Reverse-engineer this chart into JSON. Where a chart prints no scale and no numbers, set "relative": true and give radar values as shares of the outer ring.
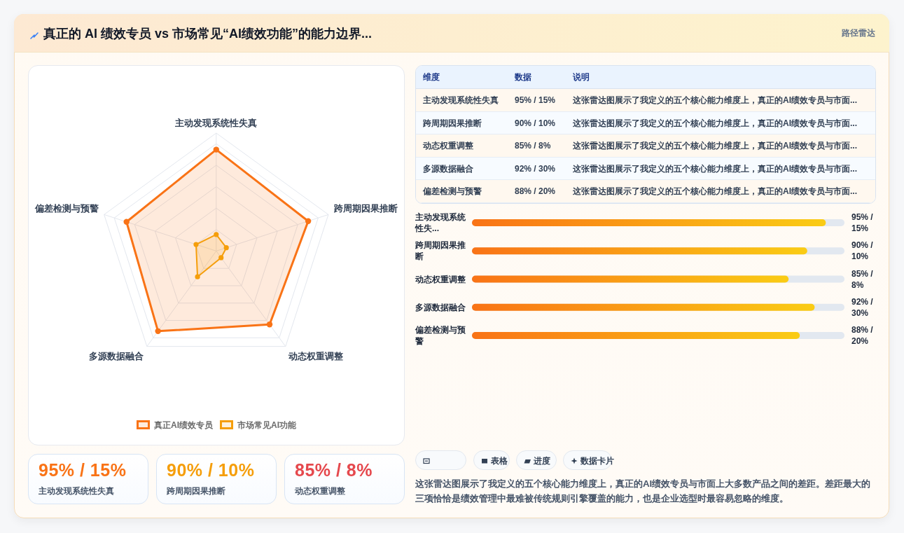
{
  "chart_data": [
    {
      "type": "other",
      "title": "真正的 AI 绩效专员 vs 市场常见“AI绩效功能”的能力边界...",
      "subtitle": "路径雷达"
    },
    {
      "type": "radar",
      "categories": [
        "主动发现系统性失真",
        "跨周期因果推断",
        "动态权重调整",
        "多源数据融合",
        "偏差检测与预警"
      ],
      "series": [
        {
          "name": "真正AI绩效专员",
          "color": "#f97316",
          "values": [
            0.86,
            0.82,
            0.77,
            0.84,
            0.8
          ]
        },
        {
          "name": "市场常见AI功能",
          "color": "#f59e0b",
          "values": [
            0.14,
            0.09,
            0.07,
            0.27,
            0.18
          ]
        }
      ],
      "relative": true,
      "grid": true,
      "legend": "bottom",
      "marker": "circle"
    },
    {
      "type": "other",
      "categories": [
        "维度",
        "数据",
        "说明"
      ],
      "y_categories": [
        "主动发现系统性失真",
        "跨周期因果推断",
        "动态权重调整",
        "多源数据融合",
        "偏差检测与预警"
      ],
      "cell_labels": [
        [
          "95% / 15%",
          "这张雷达图展示了我定义的五个核心能力维度上，真正的AI绩效专员与市面..."
        ],
        [
          "90% / 10%",
          "这张雷达图展示了我定义的五个核心能力维度上，真正的AI绩效专员与市面..."
        ],
        [
          "85% / 8%",
          "这张雷达图展示了我定义的五个核心能力维度上，真正的AI绩效专员与市面..."
        ],
        [
          "92% / 30%",
          "这张雷达图展示了我定义的五个核心能力维度上，真正的AI绩效专员与市面..."
        ],
        [
          "88% / 20%",
          "这张雷达图展示了我定义的五个核心能力维度上，真正的AI绩效专员与市面..."
        ]
      ]
    },
    {
      "type": "bar",
      "orientation": "horizontal",
      "categories": [
        "主动发现系统性失...",
        "跨周期因果推断",
        "动态权重调整",
        "多源数据融合",
        "偏差检测与预警"
      ],
      "values": [
        95,
        90,
        85,
        92,
        88
      ],
      "color": "#f97316",
      "value_labels": [
        "95% / 15%",
        "90% / 10%",
        "85% / 8%",
        "92% / 30%",
        "88% / 20%"
      ],
      "xlim": [
        0,
        100
      ],
      "tick_labels": "y"
    },
    {
      "type": "other",
      "annotations": [
        "95% / 15%",
        "主动发现系统性失真",
        "90% / 10%",
        "跨周期因果推断",
        "85% / 8%",
        "动态权重调整"
      ]
    },
    {
      "type": "other",
      "categories": [
        null,
        "表格",
        "进度",
        "数据卡片"
      ],
      "annotations": [
        "这张雷达图展示了我定义的五个核心能力维度上，真正的AI绩效专员与市面上大多数产品之间的差距。差距最大的三项恰恰是绩效管理中最难被传统规则引擎覆盖的能力，也是企业选型时最容易忽略的维度。"
      ]
    }
  ]
}
